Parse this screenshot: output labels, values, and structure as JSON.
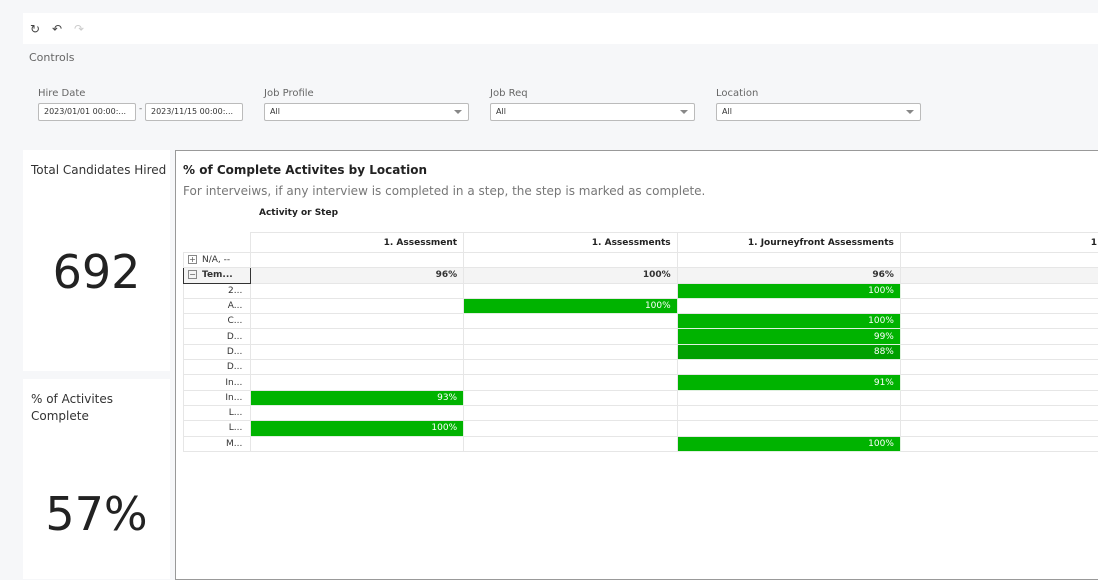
{
  "toolbar": {
    "icons": [
      "refresh-icon",
      "undo-icon",
      "redo-icon"
    ]
  },
  "controls": {
    "label": "Controls",
    "hire_date": {
      "label": "Hire Date",
      "from": "2023/01/01 00:00:...",
      "to": "2023/11/15 00:00:..."
    },
    "job_profile": {
      "label": "Job Profile",
      "value": "All"
    },
    "job_req": {
      "label": "Job Req",
      "value": "All"
    },
    "location": {
      "label": "Location",
      "value": "All"
    }
  },
  "kpi1": {
    "title": "Total Candidates Hired",
    "value": "692"
  },
  "kpi2": {
    "title": "% of Activites Complete",
    "value": "57%"
  },
  "pivot": {
    "title": "% of Complete Activites by Location",
    "subtitle": "For interveiws, if any interview is completed in a step, the step is marked as complete.",
    "column_axis": "Activity or Step",
    "columns": [
      "1. Assessment",
      "1. Assessments",
      "1. Journeyfront Assessments",
      "1"
    ],
    "rows": [
      {
        "label": "N/A, --",
        "toggle": "+",
        "cells": [
          "",
          "",
          "",
          ""
        ]
      },
      {
        "label": "Tem...",
        "toggle": "−",
        "total": true,
        "cells": [
          "96%",
          "100%",
          "96%",
          ""
        ]
      },
      {
        "label": "2...",
        "cells": [
          "",
          "",
          "100%",
          ""
        ]
      },
      {
        "label": "A...",
        "cells": [
          "",
          "100%",
          "",
          ""
        ]
      },
      {
        "label": "C...",
        "cells": [
          "",
          "",
          "100%",
          ""
        ]
      },
      {
        "label": "D...",
        "cells": [
          "",
          "",
          "99%",
          ""
        ]
      },
      {
        "label": "D...",
        "cells": [
          "",
          "",
          "88%",
          ""
        ]
      },
      {
        "label": "D...",
        "cells": [
          "",
          "",
          "",
          ""
        ]
      },
      {
        "label": "In...",
        "cells": [
          "",
          "",
          "91%",
          ""
        ]
      },
      {
        "label": "In...",
        "cells": [
          "93%",
          "",
          "",
          ""
        ]
      },
      {
        "label": "L...",
        "cells": [
          "",
          "",
          "",
          ""
        ]
      },
      {
        "label": "L...",
        "cells": [
          "100%",
          "",
          "",
          ""
        ]
      },
      {
        "label": "M...",
        "cells": [
          "",
          "",
          "100%",
          ""
        ]
      }
    ],
    "highlight_color": "#00b300"
  }
}
